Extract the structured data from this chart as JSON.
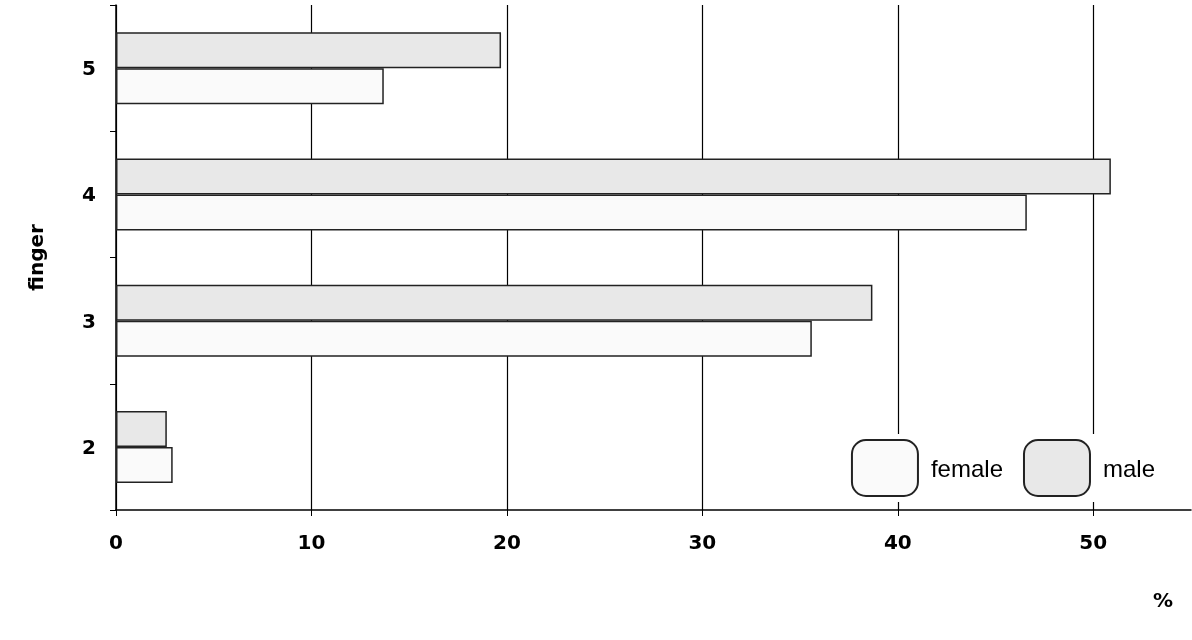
{
  "chart_data": {
    "type": "bar",
    "orientation": "horizontal",
    "xlabel": "%",
    "ylabel": "finger",
    "categories": [
      "5",
      "4",
      "3",
      "2"
    ],
    "series": [
      {
        "name": "female",
        "color": "#fafafa",
        "values": [
          13.7,
          46.6,
          35.6,
          2.9
        ]
      },
      {
        "name": "male",
        "color": "#e8e8e8",
        "values": [
          19.7,
          50.9,
          38.7,
          2.6
        ]
      }
    ],
    "xlim": [
      0,
      55
    ],
    "xticks": [
      0,
      10,
      20,
      30,
      40,
      50
    ],
    "grid": "x",
    "legend": "bottom right"
  }
}
